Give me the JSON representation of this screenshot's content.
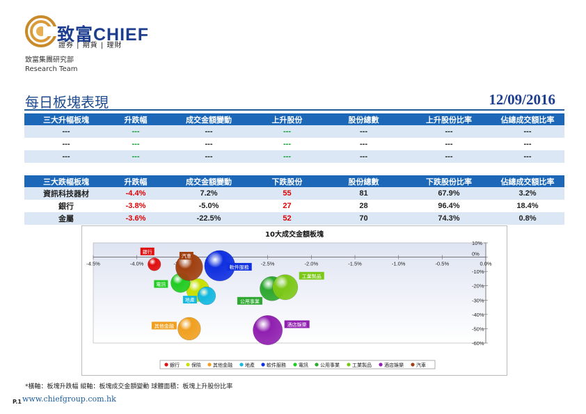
{
  "header": {
    "brand": "致富CHIEF",
    "tagline": "證券 | 期貨 | 理財",
    "dept_line1": "致富集團研究部",
    "dept_line2": "Research Team"
  },
  "page": {
    "title": "每日板塊表現",
    "date": "12/09/2016"
  },
  "top_table": {
    "headers": [
      "三大升幅板塊",
      "升跌幅",
      "成交金額變動",
      "上升股份",
      "股份總數",
      "上升股份比率",
      "佔總成交額比率"
    ],
    "rows": [
      [
        "---",
        "---",
        "---",
        "---",
        "---",
        "---",
        "---"
      ],
      [
        "---",
        "---",
        "---",
        "---",
        "---",
        "---",
        "---"
      ],
      [
        "---",
        "---",
        "---",
        "---",
        "---",
        "---",
        "---"
      ]
    ]
  },
  "bottom_table": {
    "headers": [
      "三大跌幅板塊",
      "升跌幅",
      "成交金額變動",
      "下跌股份",
      "股份總數",
      "下跌股份比率",
      "佔總成交額比率"
    ],
    "rows": [
      [
        "資訊科技器材",
        "-4.4%",
        "7.2%",
        "55",
        "81",
        "67.9%",
        "3.2%"
      ],
      [
        "銀行",
        "-3.8%",
        "-5.0%",
        "27",
        "28",
        "96.4%",
        "18.4%"
      ],
      [
        "金屬",
        "-3.6%",
        "-22.5%",
        "52",
        "70",
        "74.3%",
        "0.8%"
      ]
    ]
  },
  "colors": {
    "header_blue": "#1c67b8",
    "row_alt": "#dbe7f4",
    "negative": "#e00000",
    "positive": "#0a9a2a"
  },
  "chart_data": {
    "type": "bubble",
    "title": "10大成交金額板塊",
    "xlim": [
      -4.5,
      0
    ],
    "ylim": [
      -60,
      10
    ],
    "x_ticks": [
      "-4.5%",
      "-4.0%",
      "-3.5%",
      "-3.0%",
      "-2.5%",
      "-2.0%",
      "-1.5%",
      "-1.0%",
      "-0.5%",
      "0.0%"
    ],
    "y_ticks": [
      "10%",
      "0%",
      "-10%",
      "-20%",
      "-30%",
      "-40%",
      "-50%",
      "-60%"
    ],
    "legend_position": "bottom",
    "series": [
      {
        "name": "銀行",
        "x": -3.8,
        "y": -5.0,
        "size": 3.6,
        "color": "#e01010"
      },
      {
        "name": "保險",
        "x": -3.3,
        "y": -23,
        "size": 25,
        "color": "#c8e000"
      },
      {
        "name": "其他金融",
        "x": -3.4,
        "y": -50,
        "size": 25,
        "color": "#f0a020"
      },
      {
        "name": "地產",
        "x": -3.2,
        "y": -27,
        "size": 12,
        "color": "#14b8e0"
      },
      {
        "name": "軟件服務",
        "x": -3.05,
        "y": -6,
        "size": 55,
        "color": "#1030e0"
      },
      {
        "name": "電訊",
        "x": -3.5,
        "y": -18,
        "size": 15,
        "color": "#22cc22"
      },
      {
        "name": "公用事業",
        "x": -2.45,
        "y": -22,
        "size": 30,
        "color": "#2ea830"
      },
      {
        "name": "工業製品",
        "x": -2.3,
        "y": -21,
        "size": 33,
        "color": "#7cc818"
      },
      {
        "name": "酒店娛樂",
        "x": -2.5,
        "y": -51,
        "size": 50,
        "color": "#9020b0"
      },
      {
        "name": "汽車",
        "x": -3.4,
        "y": -7,
        "size": 40,
        "color": "#a04010"
      }
    ]
  },
  "footer": {
    "note": "*橫軸：板塊升跌幅      縱軸：板塊成交金額變動      球體面積：板塊上升股份比率",
    "url": "www.chiefgroup.com.hk",
    "page_no": "P.1"
  }
}
